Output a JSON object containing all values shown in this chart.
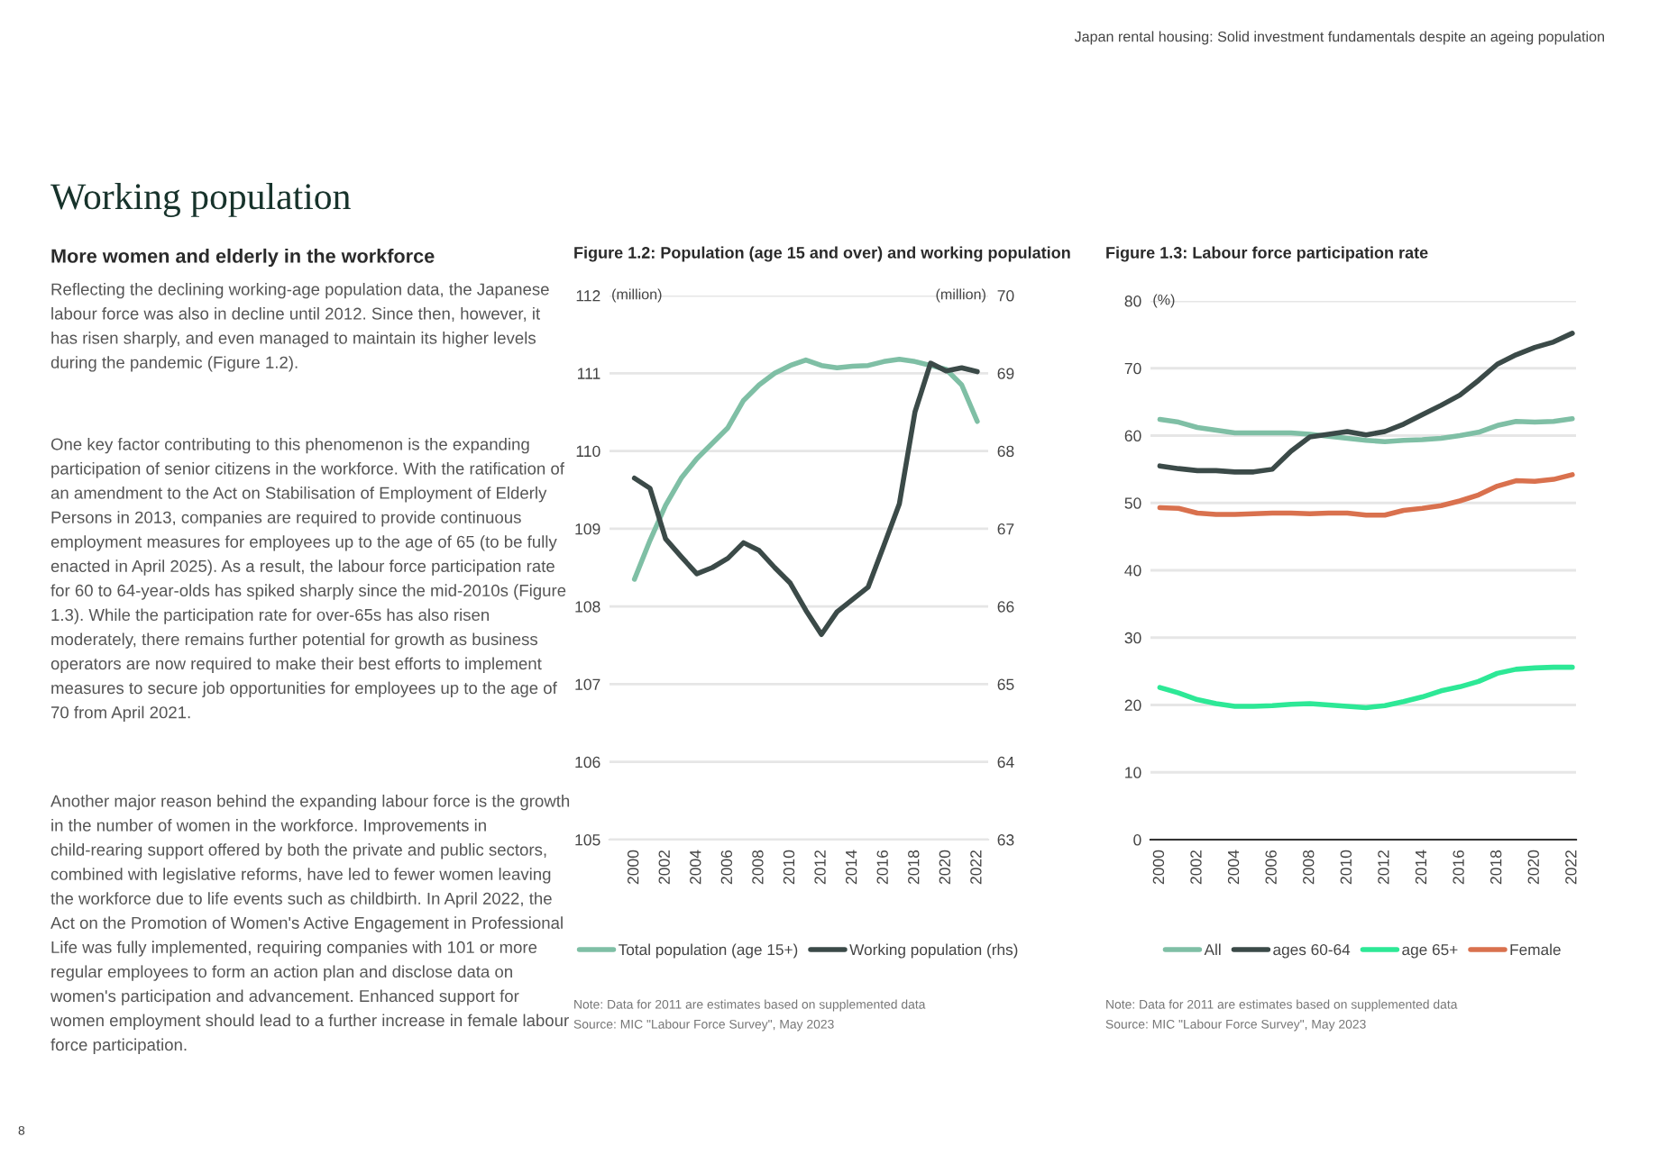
{
  "chart_data": [
    {
      "type": "other",
      "title": "Working population",
      "subtitle": "More women and elderly in the workforce",
      "annotations": [
        "Japan rental housing: Solid investment fundamentals despite an ageing population",
        "Reflecting the declining working-age population data, the Japanese labour force was also in decline until 2012. Since then, however, it has risen sharply, and even managed to maintain its higher levels during the pandemic (Figure 1.2).",
        "One key factor contributing to this phenomenon is the expanding participation of senior citizens in the workforce. With the ratification of an amendment to the Act on Stabilisation of Employment of Elderly Persons in 2013, companies are required to provide continuous employment measures for employees up to the age of 65 (to be fully enacted in April 2025). As a result, the labour force participation rate for 60 to 64-year-olds has spiked sharply since the mid-2010s (Figure 1.3). While the participation rate for over-65s has also risen moderately, there remains further potential for growth as business operators are now required to make their best efforts to implement measures to secure job opportunities for employees up to the age of 70 from April 2021.",
        "Another major reason behind the expanding labour force is the growth in the number of women in the workforce. Improvements in child-rearing support offered by both the private and public sectors, combined with legislative reforms, have led to fewer women leaving the workforce due to life events such as childbirth. In April 2022, the Act on the Promotion of Women's Active Engagement in Professional Life was fully implemented, requiring companies with 101 or more regular employees to form an action plan and disclose data on women's participation and advancement. Enhanced support for women employment should lead to a further increase in female labour force participation.",
        "8"
      ]
    },
    {
      "type": "line",
      "title": "Figure 1.2: Population (age 15 and over) and working population",
      "ylabel": "(million)",
      "y2label": "(million)",
      "x": [
        2000,
        2001,
        2002,
        2003,
        2004,
        2005,
        2006,
        2007,
        2008,
        2009,
        2010,
        2011,
        2012,
        2013,
        2014,
        2015,
        2016,
        2017,
        2018,
        2019,
        2020,
        2021,
        2022
      ],
      "series": [
        {
          "name": "Total population (age 15+)",
          "color": "#7fbfa5",
          "values": [
            108.35,
            108.85,
            109.3,
            109.65,
            109.9,
            110.1,
            110.3,
            110.65,
            110.85,
            111.0,
            111.1,
            111.17,
            111.1,
            111.07,
            111.09,
            111.1,
            111.15,
            111.18,
            111.15,
            111.1,
            111.05,
            110.85,
            110.38
          ]
        },
        {
          "name": "Working population (rhs)",
          "color": "#3b4a48",
          "axis": "y2",
          "values": [
            67.65,
            67.52,
            66.87,
            66.64,
            66.42,
            66.5,
            66.62,
            66.82,
            66.72,
            66.5,
            66.3,
            65.95,
            65.64,
            65.93,
            66.09,
            66.25,
            66.78,
            67.32,
            68.5,
            69.13,
            69.03,
            69.07,
            69.02
          ]
        }
      ],
      "xlim": [
        1998.4,
        2022.7
      ],
      "xticks": [
        2000,
        2002,
        2004,
        2006,
        2008,
        2010,
        2012,
        2014,
        2016,
        2018,
        2020,
        2022
      ],
      "ylim": [
        105,
        112
      ],
      "yticks": [
        105,
        106,
        107,
        108,
        109,
        110,
        111,
        112
      ],
      "y2lim": [
        63,
        70
      ],
      "y2ticks": [
        63,
        64,
        65,
        66,
        67,
        68,
        69,
        70
      ],
      "grid": "y",
      "legend": "bottom",
      "line_style": "solid",
      "annotations": [
        "Note: Data for 2011 are estimates based on supplemented data",
        "Source: MIC \"Labour Force Survey\", May 2023"
      ]
    },
    {
      "type": "line",
      "title": "Figure 1.3: Labour force participation rate",
      "ylabel": "(%)",
      "x": [
        2000,
        2001,
        2002,
        2003,
        2004,
        2005,
        2006,
        2007,
        2008,
        2009,
        2010,
        2011,
        2012,
        2013,
        2014,
        2015,
        2016,
        2017,
        2018,
        2019,
        2020,
        2021,
        2022
      ],
      "series": [
        {
          "name": "All",
          "color": "#7fbfa5",
          "values": [
            62.4,
            62.0,
            61.2,
            60.8,
            60.4,
            60.4,
            60.4,
            60.4,
            60.2,
            59.9,
            59.6,
            59.3,
            59.1,
            59.3,
            59.4,
            59.6,
            60.0,
            60.5,
            61.5,
            62.1,
            62.0,
            62.1,
            62.5
          ]
        },
        {
          "name": "ages 60-64",
          "color": "#3b4a48",
          "values": [
            55.5,
            55.1,
            54.8,
            54.8,
            54.6,
            54.6,
            55.0,
            57.7,
            59.8,
            60.2,
            60.6,
            60.1,
            60.6,
            61.7,
            63.1,
            64.5,
            66.0,
            68.2,
            70.6,
            72.0,
            73.1,
            73.9,
            75.2
          ]
        },
        {
          "name": "age 65+",
          "color": "#2de896",
          "values": [
            22.6,
            21.8,
            20.8,
            20.2,
            19.8,
            19.8,
            19.9,
            20.1,
            20.2,
            20.0,
            19.8,
            19.6,
            19.9,
            20.5,
            21.2,
            22.1,
            22.7,
            23.5,
            24.7,
            25.3,
            25.5,
            25.6,
            25.6
          ]
        },
        {
          "name": "Female",
          "color": "#d9714e",
          "values": [
            49.3,
            49.2,
            48.5,
            48.3,
            48.3,
            48.4,
            48.5,
            48.5,
            48.4,
            48.5,
            48.5,
            48.2,
            48.2,
            48.9,
            49.2,
            49.6,
            50.3,
            51.2,
            52.5,
            53.3,
            53.2,
            53.5,
            54.2
          ]
        }
      ],
      "xlim": [
        1999.5,
        2022.2
      ],
      "xticks": [
        2000,
        2002,
        2004,
        2006,
        2008,
        2010,
        2012,
        2014,
        2016,
        2018,
        2020,
        2022
      ],
      "ylim": [
        0,
        80
      ],
      "yticks": [
        0,
        10,
        20,
        30,
        40,
        50,
        60,
        70,
        80
      ],
      "grid": "y",
      "legend": "bottom",
      "line_style": "solid",
      "annotations": [
        "Note: Data for 2011 are estimates based on supplemented data",
        "Source: MIC \"Labour Force Survey\", May 2023"
      ]
    }
  ]
}
